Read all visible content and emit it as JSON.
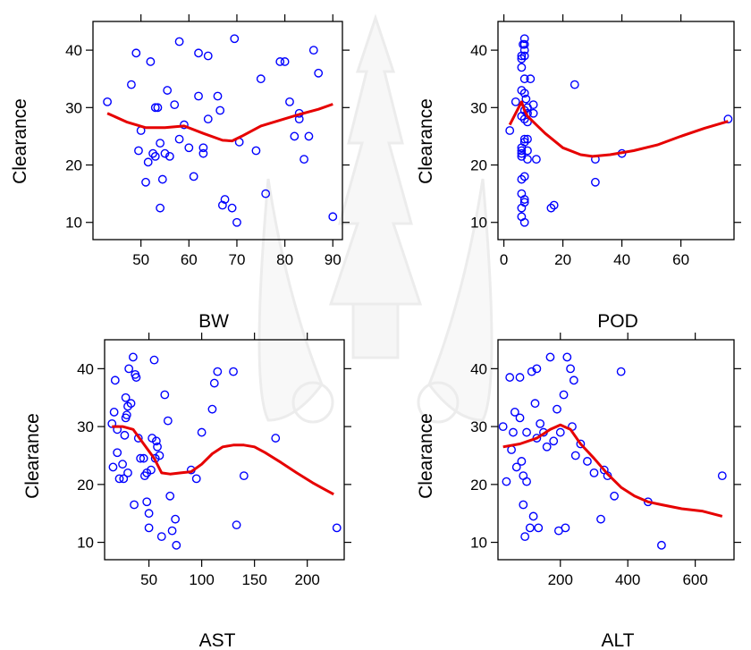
{
  "chart_data": [
    {
      "type": "scatter",
      "xlabel": "BW",
      "ylabel": "Clearance",
      "xlim": [
        40,
        92
      ],
      "ylim": [
        7,
        45
      ],
      "xticks": [
        50,
        60,
        70,
        80,
        90
      ],
      "yticks": [
        10,
        20,
        30,
        40
      ],
      "series": [
        {
          "kind": "points",
          "color": "#0000ff",
          "x": [
            43,
            48,
            49,
            49.5,
            50,
            51,
            51.5,
            52,
            52.5,
            53,
            53,
            53.5,
            54,
            54,
            54.5,
            55,
            55.5,
            56,
            57,
            58,
            58,
            59,
            60,
            61,
            62,
            62,
            63,
            63,
            64,
            64,
            66,
            66.5,
            67,
            67.5,
            69,
            69.5,
            70,
            70.5,
            74,
            75,
            76,
            79,
            80,
            81,
            82,
            83,
            83,
            84,
            85,
            86,
            87,
            90
          ],
          "y": [
            31,
            34,
            39.5,
            22.5,
            26,
            17,
            20.5,
            38,
            22,
            30,
            21.5,
            30,
            23.8,
            12.5,
            17.5,
            22,
            33,
            21.5,
            30.5,
            24.5,
            41.5,
            27,
            23,
            18,
            32,
            39.5,
            22,
            23,
            28,
            39,
            32,
            29.5,
            13,
            14,
            12.5,
            42,
            10,
            24,
            22.5,
            35,
            15,
            38,
            38,
            31,
            25,
            29,
            28,
            21,
            25,
            40,
            36,
            11
          ]
        },
        {
          "kind": "smooth",
          "color": "#e60000",
          "x": [
            43,
            47,
            51,
            55,
            59,
            63,
            67,
            69,
            71,
            75,
            79,
            83,
            87,
            90
          ],
          "y": [
            29,
            27.5,
            26.5,
            26.5,
            26.8,
            25.5,
            24.3,
            24.2,
            25,
            26.8,
            27.8,
            28.8,
            29.7,
            30.6
          ]
        }
      ]
    },
    {
      "type": "scatter",
      "xlabel": "POD",
      "ylabel": "Clearance",
      "xlim": [
        -2,
        78
      ],
      "ylim": [
        7,
        45
      ],
      "xticks": [
        0,
        20,
        40,
        60
      ],
      "yticks": [
        10,
        20,
        30,
        40
      ],
      "series": [
        {
          "kind": "points",
          "color": "#0000ff",
          "x": [
            2,
            4,
            6,
            6,
            6,
            6,
            6,
            6,
            6,
            6,
            6,
            6,
            6,
            6,
            6,
            6.5,
            7,
            7,
            7,
            7,
            7,
            7,
            7,
            7,
            7,
            7,
            7,
            7,
            7,
            7,
            7.5,
            8,
            8,
            8,
            8,
            8,
            8,
            9,
            10,
            10,
            11,
            16,
            17,
            24,
            31,
            31,
            40,
            76
          ],
          "y": [
            26,
            31,
            37,
            38.5,
            39,
            33,
            28.5,
            22.5,
            22,
            21.5,
            23,
            17.5,
            15,
            12.5,
            11,
            41,
            42,
            41,
            40,
            39,
            35,
            32.5,
            29.5,
            28,
            24.5,
            24,
            18,
            14,
            13.5,
            10,
            31.5,
            30,
            29,
            27.5,
            24.5,
            22.5,
            21,
            35,
            30.5,
            29,
            21,
            12.5,
            13,
            34,
            21,
            17,
            22,
            28
          ]
        },
        {
          "kind": "smooth",
          "color": "#e60000",
          "x": [
            2,
            4,
            6,
            7,
            8,
            10,
            14,
            20,
            26,
            30,
            36,
            44,
            52,
            60,
            68,
            76
          ],
          "y": [
            27,
            29,
            31,
            29.5,
            28.5,
            27.5,
            25.5,
            23,
            21.8,
            21.5,
            21.8,
            22.5,
            23.5,
            25,
            26.4,
            27.6
          ]
        }
      ]
    },
    {
      "type": "scatter",
      "xlabel": "AST",
      "ylabel": "Clearance",
      "xlim": [
        8,
        235
      ],
      "ylim": [
        7,
        45
      ],
      "xticks": [
        50,
        100,
        150,
        200
      ],
      "yticks": [
        10,
        20,
        30,
        40
      ],
      "series": [
        {
          "kind": "points",
          "color": "#0000ff",
          "x": [
            15,
            16,
            17,
            18,
            20,
            20,
            22,
            25,
            26,
            27,
            28,
            28,
            29,
            30,
            30,
            31,
            33,
            35,
            36,
            37,
            38,
            40,
            42,
            45,
            46,
            48,
            48,
            50,
            50,
            52,
            53,
            55,
            56,
            57,
            58,
            60,
            62,
            65,
            68,
            70,
            72,
            75,
            76,
            90,
            95,
            100,
            110,
            112,
            115,
            130,
            133,
            140,
            170,
            228
          ],
          "y": [
            30.5,
            23,
            32.5,
            38,
            25.5,
            29.5,
            21,
            23.5,
            21,
            28.5,
            31.5,
            35,
            32,
            33.5,
            22,
            40,
            34,
            42,
            16.5,
            39,
            38.5,
            28,
            24.5,
            24.5,
            21.5,
            22,
            17,
            12.5,
            15,
            22.5,
            28,
            41.5,
            24.5,
            27.5,
            26.5,
            25,
            11,
            35.5,
            31,
            18,
            12,
            14,
            9.5,
            22.5,
            21,
            29,
            33,
            37.5,
            39.5,
            39.5,
            13,
            21.5,
            28,
            12.5
          ]
        },
        {
          "kind": "smooth",
          "color": "#e60000",
          "x": [
            15,
            25,
            35,
            45,
            55,
            62,
            70,
            80,
            90,
            100,
            110,
            120,
            130,
            140,
            150,
            160,
            175,
            190,
            205,
            215,
            225
          ],
          "y": [
            30,
            30,
            29.5,
            27,
            24.5,
            22,
            21.8,
            22,
            22.2,
            23.5,
            25.3,
            26.5,
            26.8,
            26.8,
            26.5,
            25.5,
            23.8,
            22,
            20.3,
            19.3,
            18.3
          ]
        }
      ]
    },
    {
      "type": "scatter",
      "xlabel": "ALT",
      "ylabel": "Clearance",
      "xlim": [
        15,
        715
      ],
      "ylim": [
        7,
        45
      ],
      "xticks": [
        200,
        400,
        600
      ],
      "yticks": [
        10,
        20,
        30,
        40
      ],
      "series": [
        {
          "kind": "points",
          "color": "#0000ff",
          "x": [
            30,
            40,
            50,
            55,
            60,
            65,
            70,
            80,
            80,
            85,
            90,
            90,
            95,
            100,
            100,
            110,
            115,
            120,
            125,
            130,
            130,
            135,
            140,
            150,
            160,
            170,
            180,
            190,
            195,
            200,
            210,
            215,
            220,
            230,
            235,
            240,
            245,
            260,
            280,
            300,
            320,
            330,
            340,
            360,
            380,
            460,
            500,
            680
          ],
          "y": [
            30,
            20.5,
            38.5,
            26,
            29,
            32.5,
            23,
            31.5,
            38.5,
            24,
            21.5,
            16.5,
            11,
            29,
            20.5,
            12.5,
            39.5,
            14.5,
            34,
            28,
            40,
            12.5,
            30.5,
            29,
            26.5,
            42,
            27.5,
            33,
            12,
            29,
            35.5,
            12.5,
            42,
            40,
            30,
            38,
            25,
            27,
            24,
            22,
            14,
            22.5,
            21.5,
            18,
            39.5,
            17,
            9.5,
            21.5
          ]
        },
        {
          "kind": "smooth",
          "color": "#e60000",
          "x": [
            30,
            80,
            130,
            170,
            200,
            230,
            260,
            300,
            340,
            380,
            420,
            460,
            500,
            560,
            620,
            680
          ],
          "y": [
            26.5,
            27,
            28,
            29.5,
            30.3,
            29.5,
            27,
            24.5,
            21.8,
            19.5,
            18,
            17,
            16.5,
            15.8,
            15.4,
            14.5
          ]
        }
      ]
    }
  ]
}
